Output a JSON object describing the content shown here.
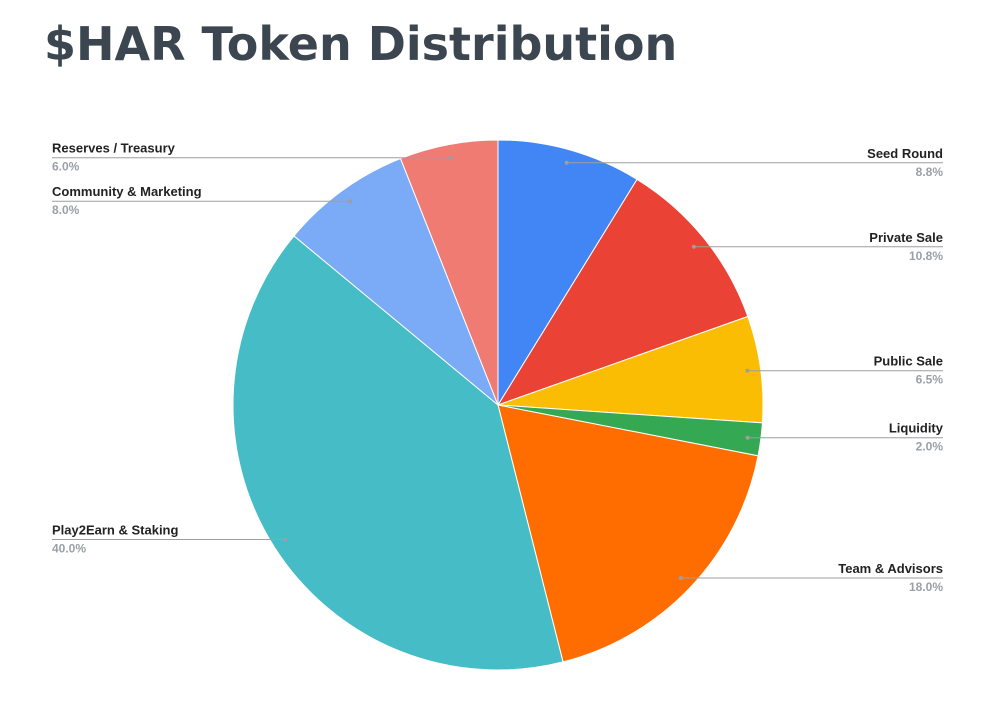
{
  "chart_data": {
    "type": "pie",
    "title": "$HAR Token Distribution",
    "categories": [
      "Seed Round",
      "Private Sale",
      "Public Sale",
      "Liquidity",
      "Team & Advisors",
      "Play2Earn & Staking",
      "Community & Marketing",
      "Reserves / Treasury"
    ],
    "values": [
      8.8,
      10.8,
      6.5,
      2.0,
      18.0,
      40.0,
      8.0,
      6.0
    ],
    "value_labels": [
      "8.8%",
      "10.8%",
      "6.5%",
      "2.0%",
      "18.0%",
      "40.0%",
      "8.0%",
      "6.0%"
    ],
    "colors": [
      "#4285f4",
      "#ea4335",
      "#fbbc04",
      "#34a853",
      "#ff6d01",
      "#46bdc6",
      "#7baaf7",
      "#f07b72"
    ]
  }
}
